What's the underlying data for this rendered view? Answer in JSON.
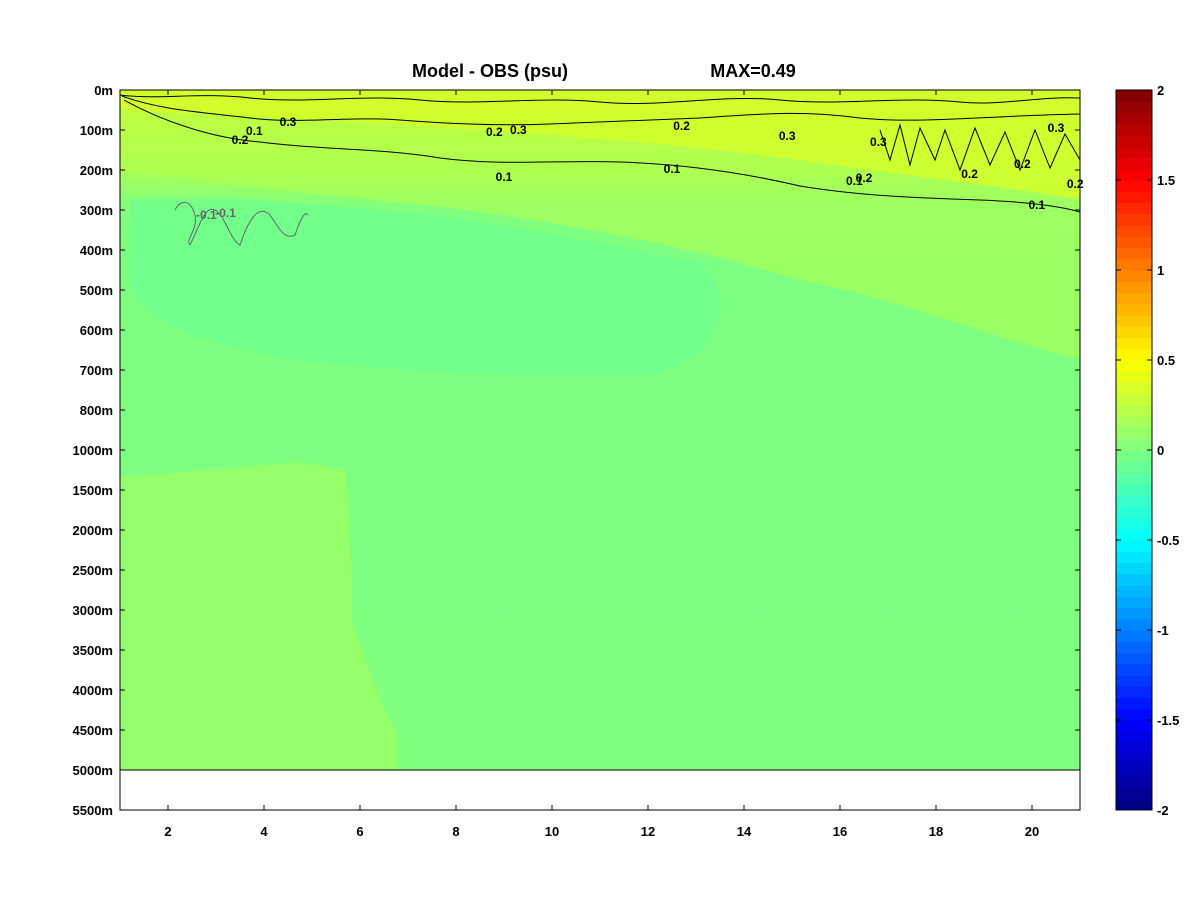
{
  "chart_data": {
    "type": "heatmap",
    "title": "Model - OBS (psu)",
    "subtitle": "MAX=0.49",
    "xlabel": "",
    "ylabel": "",
    "xlim": [
      1,
      21
    ],
    "x_ticks": [
      2,
      4,
      6,
      8,
      10,
      12,
      14,
      16,
      18,
      20
    ],
    "y_tick_labels": [
      "0m",
      "100m",
      "200m",
      "300m",
      "400m",
      "500m",
      "600m",
      "700m",
      "800m",
      "1000m",
      "1500m",
      "2000m",
      "2500m",
      "3000m",
      "3500m",
      "4000m",
      "4500m",
      "5000m",
      "5500m"
    ],
    "bottom_depth": "5000m",
    "colorbar": {
      "colormap": "jet",
      "range": [
        -2,
        2
      ],
      "ticks": [
        "2",
        "1.5",
        "1",
        "0.5",
        "0",
        "-0.5",
        "-1",
        "-1.5",
        "-2"
      ]
    },
    "contour_levels": [
      0.1,
      0.2,
      0.3,
      -0.1
    ],
    "contour_labels": [
      {
        "text": "0.3",
        "x": 4.5,
        "depth": "100m",
        "color": "#000000"
      },
      {
        "text": "0.3",
        "x": 9.3,
        "depth": "100m",
        "color": "#000000"
      },
      {
        "text": "0.3",
        "x": 14.9,
        "depth": "100m",
        "color": "#000000"
      },
      {
        "text": "0.3",
        "x": 16.8,
        "depth": "100m",
        "color": "#000000"
      },
      {
        "text": "0.3",
        "x": 20.5,
        "depth": "100m",
        "color": "#000000"
      },
      {
        "text": "0.2",
        "x": 3.5,
        "depth": "100m",
        "color": "#000000"
      },
      {
        "text": "0.2",
        "x": 8.8,
        "depth": "100m",
        "color": "#000000"
      },
      {
        "text": "0.2",
        "x": 12.7,
        "depth": "100m",
        "color": "#000000"
      },
      {
        "text": "0.2",
        "x": 16.5,
        "depth": "200m",
        "color": "#000000"
      },
      {
        "text": "0.2",
        "x": 18.7,
        "depth": "200m",
        "color": "#000000"
      },
      {
        "text": "0.2",
        "x": 19.8,
        "depth": "200m",
        "color": "#000000"
      },
      {
        "text": "0.2",
        "x": 20.9,
        "depth": "200m",
        "color": "#000000"
      },
      {
        "text": "0.1",
        "x": 3.8,
        "depth": "100m",
        "color": "#000000"
      },
      {
        "text": "0.1",
        "x": 9.0,
        "depth": "200m",
        "color": "#000000"
      },
      {
        "text": "0.1",
        "x": 12.5,
        "depth": "200m",
        "color": "#000000"
      },
      {
        "text": "0.1",
        "x": 16.3,
        "depth": "200m",
        "color": "#000000"
      },
      {
        "text": "0.1",
        "x": 20.1,
        "depth": "300m",
        "color": "#000000"
      },
      {
        "text": "-0.1",
        "x": 3.2,
        "depth": "300m",
        "color": "#666666"
      },
      {
        "text": "-0.1",
        "x": 2.8,
        "depth": "300m",
        "color": "#666666"
      }
    ]
  }
}
